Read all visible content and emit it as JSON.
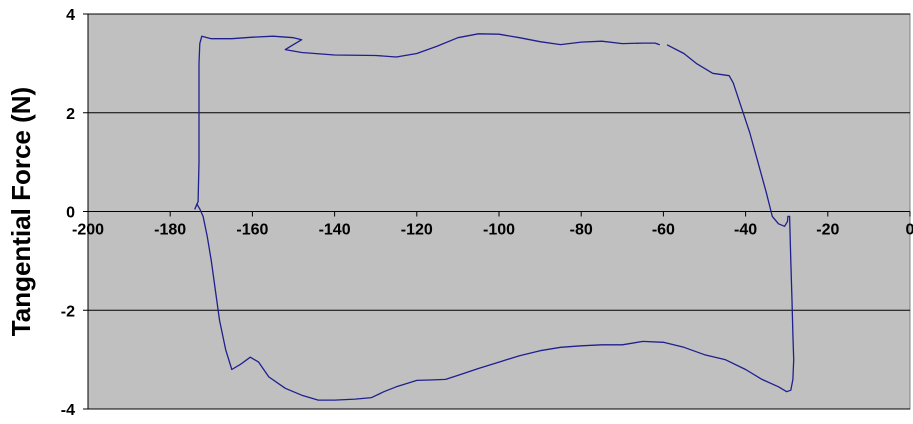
{
  "chart_data": {
    "type": "line",
    "title": "",
    "xlabel": "",
    "ylabel": "Tangential Force (N)",
    "xlim": [
      -200,
      0
    ],
    "ylim": [
      -4,
      4
    ],
    "x_ticks": [
      -200,
      -180,
      -160,
      -140,
      -120,
      -100,
      -80,
      -60,
      -40,
      -20,
      0
    ],
    "y_ticks": [
      -4,
      -2,
      0,
      2,
      4
    ],
    "x_tick_labels": [
      "-200",
      "-180",
      "-160",
      "-140",
      "-120",
      "-100",
      "-80",
      "-60",
      "-40",
      "-20",
      "0"
    ],
    "y_tick_labels": [
      "-4",
      "-2",
      "0",
      "2",
      "4"
    ],
    "grid": "horizontal",
    "legend": "none",
    "colors": {
      "plot_background": "#c0c0c0",
      "line": "#1f1f8f",
      "grid": "#000000"
    },
    "series": [
      {
        "segments": [
          [
            [
              -173.5,
              0.15
            ],
            [
              -174,
              0.05
            ],
            [
              -173.2,
              0.2
            ],
            [
              -173.0,
              1.0
            ],
            [
              -173.0,
              2.0
            ],
            [
              -173.0,
              3.0
            ],
            [
              -172.8,
              3.4
            ],
            [
              -172.3,
              3.55
            ],
            [
              -170,
              3.5
            ],
            [
              -165,
              3.5
            ],
            [
              -160,
              3.53
            ],
            [
              -155,
              3.55
            ],
            [
              -150,
              3.52
            ],
            [
              -148,
              3.48
            ],
            [
              -150,
              3.38
            ],
            [
              -152,
              3.28
            ],
            [
              -148,
              3.22
            ],
            [
              -140,
              3.17
            ],
            [
              -130,
              3.16
            ],
            [
              -125,
              3.13
            ],
            [
              -120,
              3.2
            ],
            [
              -115,
              3.35
            ],
            [
              -110,
              3.52
            ],
            [
              -105,
              3.6
            ],
            [
              -100,
              3.59
            ],
            [
              -95,
              3.52
            ],
            [
              -90,
              3.44
            ],
            [
              -85,
              3.38
            ],
            [
              -80,
              3.43
            ],
            [
              -75,
              3.45
            ],
            [
              -70,
              3.4
            ],
            [
              -65,
              3.41
            ],
            [
              -62,
              3.41
            ],
            [
              -61,
              3.38
            ]
          ],
          [
            [
              -59,
              3.37
            ],
            [
              -55,
              3.2
            ],
            [
              -52,
              3.0
            ],
            [
              -48,
              2.8
            ],
            [
              -44,
              2.75
            ],
            [
              -43,
              2.6
            ],
            [
              -41,
              2.1
            ],
            [
              -39,
              1.6
            ],
            [
              -37,
              1.0
            ],
            [
              -35,
              0.4
            ],
            [
              -33.5,
              -0.1
            ],
            [
              -32,
              -0.25
            ],
            [
              -30.5,
              -0.3
            ],
            [
              -29.8,
              -0.2
            ],
            [
              -29.7,
              -0.1
            ],
            [
              -29.3,
              -0.1
            ],
            [
              -29.0,
              -1.0
            ],
            [
              -28.7,
              -1.8
            ],
            [
              -28.5,
              -2.5
            ],
            [
              -28.3,
              -3.0
            ],
            [
              -28.5,
              -3.4
            ],
            [
              -29.0,
              -3.62
            ],
            [
              -30.0,
              -3.65
            ],
            [
              -32.0,
              -3.55
            ],
            [
              -36,
              -3.4
            ],
            [
              -40,
              -3.2
            ],
            [
              -45,
              -3.0
            ],
            [
              -50,
              -2.9
            ],
            [
              -55,
              -2.75
            ],
            [
              -60,
              -2.65
            ],
            [
              -65,
              -2.63
            ],
            [
              -70,
              -2.7
            ],
            [
              -75,
              -2.7
            ],
            [
              -80,
              -2.72
            ],
            [
              -85,
              -2.75
            ],
            [
              -90,
              -2.82
            ],
            [
              -95,
              -2.92
            ],
            [
              -100,
              -3.05
            ],
            [
              -105,
              -3.18
            ],
            [
              -110,
              -3.32
            ],
            [
              -113,
              -3.4
            ],
            [
              -116,
              -3.41
            ],
            [
              -120,
              -3.42
            ],
            [
              -125,
              -3.55
            ],
            [
              -128,
              -3.65
            ],
            [
              -131,
              -3.77
            ],
            [
              -135,
              -3.8
            ],
            [
              -140,
              -3.82
            ],
            [
              -144,
              -3.82
            ],
            [
              -148,
              -3.72
            ],
            [
              -152,
              -3.58
            ],
            [
              -156,
              -3.35
            ],
            [
              -158.5,
              -3.05
            ],
            [
              -160.5,
              -2.95
            ],
            [
              -163,
              -3.1
            ],
            [
              -165,
              -3.2
            ],
            [
              -166.5,
              -2.8
            ],
            [
              -168,
              -2.2
            ],
            [
              -169,
              -1.6
            ],
            [
              -170,
              -1.0
            ],
            [
              -171,
              -0.5
            ],
            [
              -172,
              -0.1
            ],
            [
              -172.8,
              0.05
            ],
            [
              -173.5,
              0.15
            ]
          ]
        ]
      }
    ]
  }
}
